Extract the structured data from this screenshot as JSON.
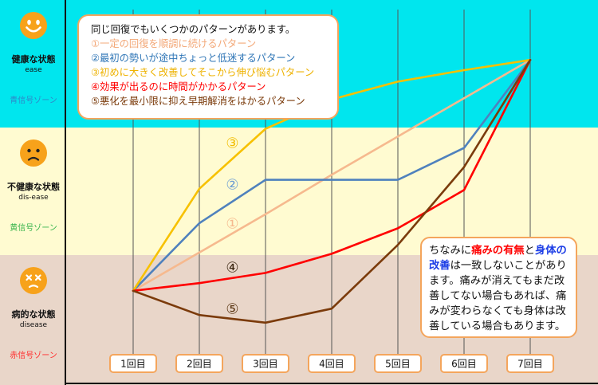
{
  "zones": [
    {
      "state": "健康な状態",
      "english": "ease",
      "signal": "青信号ゾーン",
      "icon": "happy-face-icon",
      "band_color": "#00e6ee",
      "signal_color": "#2f86c8",
      "range": [
        2,
        3
      ]
    },
    {
      "state": "不健康な状態",
      "english": "dis-ease",
      "signal": "黄信号ゾーン",
      "icon": "sad-face-icon",
      "band_color": "#fffbd1",
      "signal_color": "#35b34a",
      "range": [
        1,
        2
      ]
    },
    {
      "state": "病的な状態",
      "english": "disease",
      "signal": "赤信号ゾーン",
      "icon": "dizzy-face-icon",
      "band_color": "#e9d6c9",
      "signal_color": "#ff2b2b",
      "range": [
        0,
        1
      ]
    }
  ],
  "colors": {
    "accent_border": "#f4a55c",
    "face": "#f7a21b",
    "grid": "#555555",
    "axis": "#111111"
  },
  "legend": {
    "intro": "同じ回復でもいくつかのパターンがあります。"
  },
  "chart_data": {
    "type": "line",
    "legend_position": "top-left",
    "categories": [
      "1回目",
      "2回目",
      "3回目",
      "4回目",
      "5回目",
      "6回目",
      "7回目"
    ],
    "ylim": [
      0,
      3
    ],
    "grid": {
      "x": true,
      "y": false
    },
    "series": [
      {
        "label": "①",
        "name": "一定の回復を順調に続けるパターン",
        "color": "#f6b98e",
        "legend_color": "#f3a878",
        "label_color": "#f6b98e",
        "values": [
          0.72,
          1.02,
          1.32,
          1.63,
          1.93,
          2.23,
          2.53
        ]
      },
      {
        "label": "②",
        "name": "最初の勢いが途中ちょっと低迷するパターン",
        "color": "#4f81bd",
        "legend_color": "#2e75b6",
        "label_color": "#6d9dd4",
        "values": [
          0.72,
          1.25,
          1.59,
          1.59,
          1.59,
          1.84,
          2.53
        ]
      },
      {
        "label": "③",
        "name": "初めに大きく改善してそこから伸び悩むパターン",
        "color": "#f7c100",
        "legend_color": "#eeb200",
        "label_color": "#f2bd00",
        "values": [
          0.72,
          1.52,
          1.99,
          2.22,
          2.36,
          2.45,
          2.53
        ]
      },
      {
        "label": "④",
        "name": "効果が出るのに時間がかかるパターン",
        "color": "#ff0000",
        "legend_color": "#ff0000",
        "label_color": "#3d2813",
        "values": [
          0.72,
          0.78,
          0.86,
          1.01,
          1.21,
          1.51,
          2.53
        ]
      },
      {
        "label": "⑤",
        "name": "悪化を最小限に抑え早期解消をはかるパターン",
        "color": "#7b3b0b",
        "legend_color": "#7b3b0b",
        "label_color": "#5a3512",
        "values": [
          0.72,
          0.53,
          0.47,
          0.58,
          1.08,
          1.69,
          2.53
        ]
      }
    ]
  },
  "note": {
    "parts": [
      {
        "text": "ちなみに"
      },
      {
        "text": "痛みの有無",
        "color": "#ff0000"
      },
      {
        "text": "と"
      },
      {
        "text": "身体の改善",
        "color": "#1d3ee6"
      },
      {
        "text": "は一致しないことがあります。痛みが消えてもまだ改善してない場合もあれば、痛みが変わらなくても身体は改善している場合もあります。"
      }
    ]
  }
}
